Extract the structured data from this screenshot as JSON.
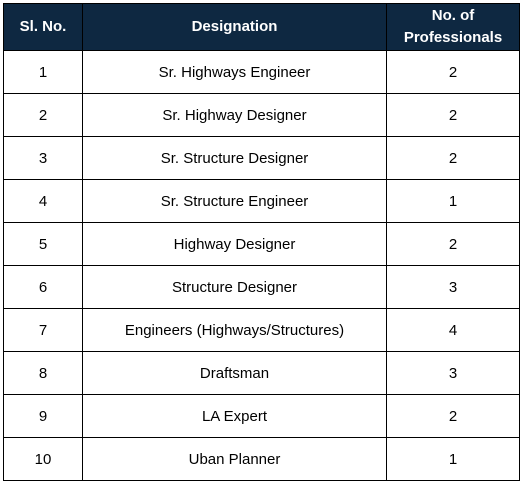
{
  "table": {
    "headers": {
      "sl_no": "Sl. No.",
      "designation": "Designation",
      "professionals_line1": "No. of",
      "professionals_line2": "Professionals"
    },
    "rows": [
      {
        "sl": "1",
        "designation": "Sr. Highways Engineer",
        "count": "2"
      },
      {
        "sl": "2",
        "designation": "Sr. Highway Designer",
        "count": "2"
      },
      {
        "sl": "3",
        "designation": "Sr. Structure Designer",
        "count": "2"
      },
      {
        "sl": "4",
        "designation": "Sr. Structure Engineer",
        "count": "1"
      },
      {
        "sl": "5",
        "designation": "Highway Designer",
        "count": "2"
      },
      {
        "sl": "6",
        "designation": "Structure Designer",
        "count": "3"
      },
      {
        "sl": "7",
        "designation": "Engineers (Highways/Structures)",
        "count": "4"
      },
      {
        "sl": "8",
        "designation": "Draftsman",
        "count": "3"
      },
      {
        "sl": "9",
        "designation": "LA Expert",
        "count": "2"
      },
      {
        "sl": "10",
        "designation": "Uban Planner",
        "count": "1"
      }
    ]
  },
  "colors": {
    "header_bg": "#0e2841",
    "header_text": "#ffffff",
    "border": "#000000"
  }
}
